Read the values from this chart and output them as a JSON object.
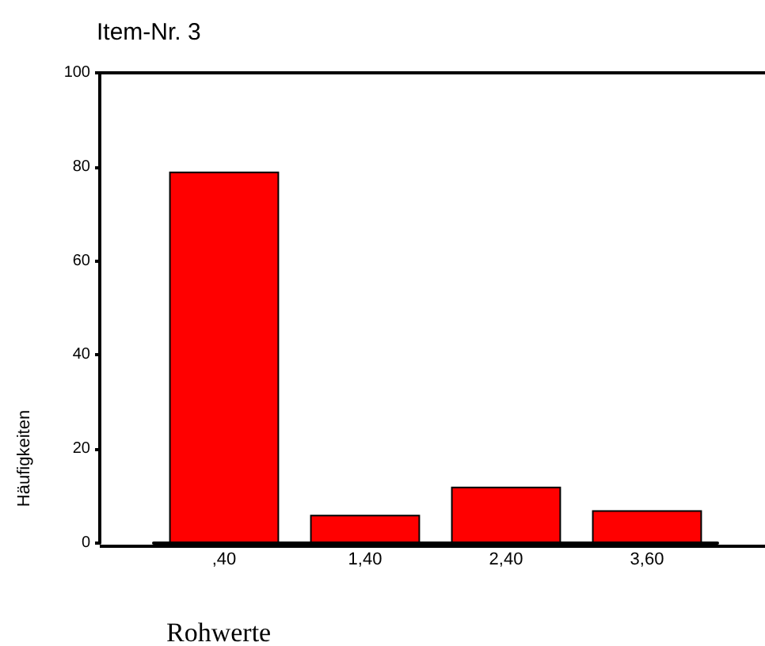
{
  "chart_data": {
    "type": "bar",
    "title": "Item-Nr. 3",
    "xlabel": "Rohwerte",
    "ylabel": "Häufigkeiten",
    "categories": [
      ",40",
      "1,40",
      "2,40",
      "3,60"
    ],
    "values": [
      79,
      6,
      12,
      7
    ],
    "color": "#ff0000",
    "ylim": [
      0,
      100
    ],
    "yticks": [
      0,
      20,
      40,
      60,
      80,
      100
    ],
    "grid": false
  }
}
